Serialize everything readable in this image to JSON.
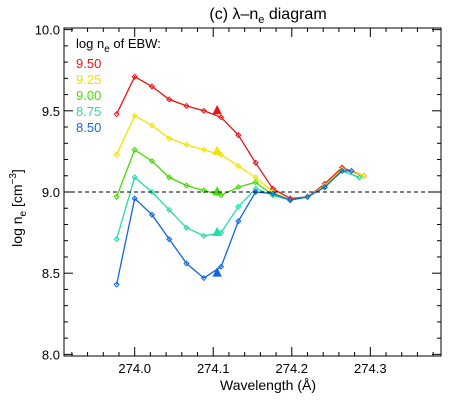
{
  "chart_data": {
    "type": "line",
    "title": "(c) λ–n",
    "title_sub": "e",
    "title_suffix": " diagram",
    "xlabel": "Wavelength (Å)",
    "ylabel_main": "log n",
    "ylabel_sub": "e",
    "ylabel_unit_open": " [cm",
    "ylabel_unit_sup": "−3",
    "ylabel_unit_close": "]",
    "xlim": [
      273.91,
      274.39
    ],
    "ylim": [
      7.99,
      10.01
    ],
    "xticks": [
      274.0,
      274.1,
      274.2,
      274.3
    ],
    "xtick_labels": [
      "274.0",
      "274.1",
      "274.2",
      "274.3"
    ],
    "yticks": [
      8.0,
      8.5,
      9.0,
      9.5,
      10.0
    ],
    "ytick_labels": [
      "8.0",
      "8.5",
      "9.0",
      "9.5",
      "10.0"
    ],
    "reference_line": {
      "y": 9.0,
      "style": "dashed"
    },
    "legend": {
      "title_main": "log n",
      "title_sub": "e",
      "title_suffix": " of EBW:",
      "placement": "top-left"
    },
    "series": [
      {
        "name": "9.50",
        "color": "#ee1111",
        "x": [
          273.977,
          274.0,
          274.022,
          274.044,
          274.066,
          274.088,
          274.11,
          274.132,
          274.154,
          274.176,
          274.198,
          274.22,
          274.242,
          274.264,
          274.292
        ],
        "y": [
          9.48,
          9.71,
          9.65,
          9.57,
          9.53,
          9.5,
          9.46,
          9.35,
          9.18,
          9.02,
          8.96,
          8.97,
          9.05,
          9.15,
          9.1
        ],
        "marker": {
          "x": 274.105,
          "y": 9.5
        }
      },
      {
        "name": "9.25",
        "color": "#f2e200",
        "x": [
          273.977,
          274.0,
          274.022,
          274.044,
          274.066,
          274.088,
          274.11,
          274.132,
          274.154,
          274.176,
          274.198,
          274.22,
          274.242,
          274.264,
          274.292
        ],
        "y": [
          9.23,
          9.47,
          9.41,
          9.33,
          9.29,
          9.26,
          9.23,
          9.16,
          9.09,
          9.0,
          8.95,
          8.97,
          9.04,
          9.14,
          9.1
        ],
        "marker": {
          "x": 274.105,
          "y": 9.25
        }
      },
      {
        "name": "9.00",
        "color": "#44dd00",
        "x": [
          273.977,
          274.0,
          274.022,
          274.044,
          274.066,
          274.088,
          274.11,
          274.132,
          274.154,
          274.176,
          274.198,
          274.22,
          274.242,
          274.264,
          274.286
        ],
        "y": [
          8.97,
          9.26,
          9.19,
          9.09,
          9.04,
          9.01,
          8.98,
          9.03,
          9.06,
          8.98,
          8.95,
          8.97,
          9.03,
          9.13,
          9.09
        ],
        "marker": {
          "x": 274.105,
          "y": 9.0
        }
      },
      {
        "name": "8.75",
        "color": "#22ddaa",
        "x": [
          273.977,
          274.0,
          274.022,
          274.044,
          274.066,
          274.088,
          274.11,
          274.132,
          274.154,
          274.176,
          274.198,
          274.22,
          274.242,
          274.264,
          274.286
        ],
        "y": [
          8.71,
          9.09,
          9.0,
          8.89,
          8.78,
          8.73,
          8.75,
          8.91,
          9.02,
          8.98,
          8.95,
          8.97,
          9.03,
          9.13,
          9.09
        ],
        "marker": {
          "x": 274.105,
          "y": 8.75
        }
      },
      {
        "name": "8.50",
        "color": "#1166dd",
        "x": [
          273.977,
          274.0,
          274.022,
          274.044,
          274.066,
          274.088,
          274.11,
          274.132,
          274.154,
          274.176,
          274.198,
          274.22,
          274.242,
          274.264,
          274.276
        ],
        "y": [
          8.43,
          8.96,
          8.86,
          8.71,
          8.56,
          8.47,
          8.54,
          8.82,
          9.0,
          8.99,
          8.95,
          8.97,
          9.03,
          9.13,
          9.13
        ],
        "marker": {
          "x": 274.105,
          "y": 8.5
        }
      }
    ]
  }
}
